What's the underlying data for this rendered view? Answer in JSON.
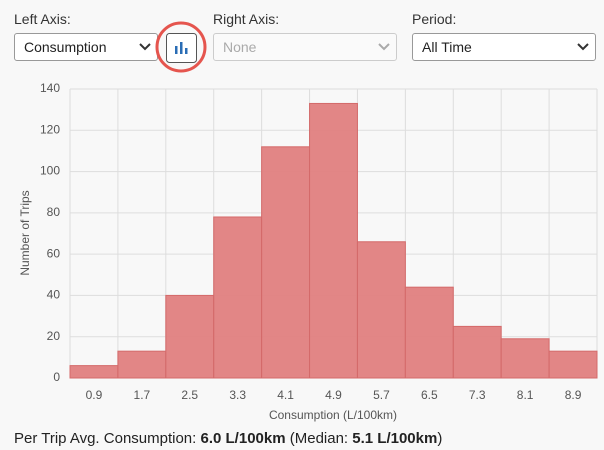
{
  "controls": {
    "left_label": "Left Axis:",
    "left_value": "Consumption",
    "right_label": "Right Axis:",
    "right_value": "None",
    "period_label": "Period:",
    "period_value": "All Time"
  },
  "chart_data": {
    "type": "bar",
    "xlabel": "Consumption (L/100km)",
    "ylabel": "Number of Trips",
    "categories": [
      "0.9",
      "1.7",
      "2.5",
      "3.3",
      "4.1",
      "4.9",
      "5.7",
      "6.5",
      "7.3",
      "8.1",
      "8.9"
    ],
    "values": [
      6,
      13,
      40,
      78,
      112,
      133,
      66,
      44,
      25,
      19,
      13
    ],
    "color": "#e07f7f",
    "ylim": [
      0,
      140
    ],
    "yticks": [
      0,
      20,
      40,
      60,
      80,
      100,
      120,
      140
    ],
    "grid": true
  },
  "footer": {
    "prefix": "Per Trip Avg. Consumption:",
    "avg": "6.0 L/100km",
    "median_prefix": "(Median:",
    "median": "5.1 L/100km",
    "suffix": ")"
  }
}
